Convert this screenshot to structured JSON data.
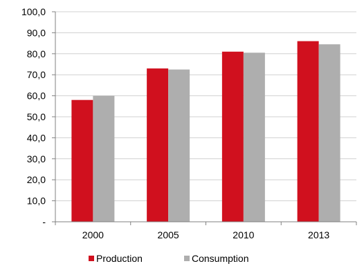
{
  "chart_data": {
    "type": "bar",
    "categories": [
      "2000",
      "2005",
      "2010",
      "2013"
    ],
    "series": [
      {
        "name": "Production",
        "values": [
          58.0,
          73.0,
          81.0,
          86.0
        ],
        "color": "#d0101e"
      },
      {
        "name": "Consumption",
        "values": [
          60.0,
          72.5,
          80.5,
          84.5
        ],
        "color": "#aeaeae"
      }
    ],
    "ylim": [
      0,
      100
    ],
    "y_ticks": [
      "-",
      "10,0",
      "20,0",
      "30,0",
      "40,0",
      "50,0",
      "60,0",
      "70,0",
      "80,0",
      "90,0",
      "100,0"
    ],
    "grid": true,
    "legend_position": "bottom",
    "colors": {
      "grid": "#d0d0d0",
      "axis": "#808080"
    }
  }
}
